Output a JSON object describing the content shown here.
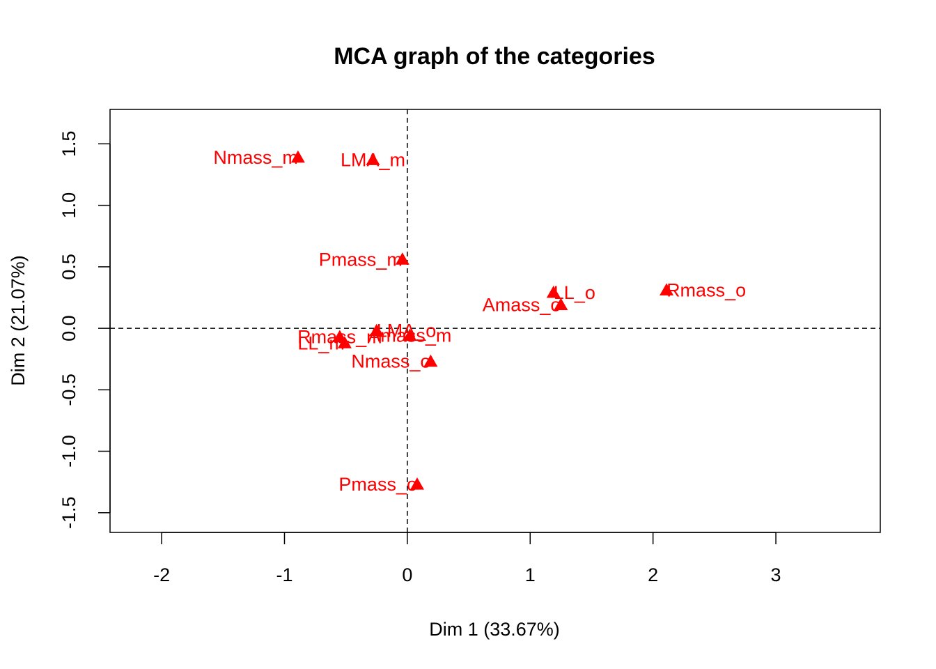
{
  "chart_data": {
    "type": "scatter",
    "title": "MCA graph of the categories",
    "xlabel": "Dim 1 (33.67%)",
    "ylabel": "Dim 2 (21.07%)",
    "xlim": [
      -2.42,
      3.85
    ],
    "ylim": [
      -1.66,
      1.78
    ],
    "xticks": [
      -2,
      -1,
      0,
      1,
      2,
      3
    ],
    "yticks": [
      -1.5,
      -1.0,
      -0.5,
      0.0,
      0.5,
      1.0,
      1.5
    ],
    "xtick_labels": [
      "-2",
      "-1",
      "0",
      "1",
      "2",
      "3"
    ],
    "ytick_labels": [
      "-1.5",
      "-1.0",
      "-0.5",
      "0.0",
      "0.5",
      "1.0",
      "1.5"
    ],
    "reference_lines": {
      "x": 0,
      "y": 0,
      "style": "dashed"
    },
    "marker": "triangle",
    "color": "#ff0000",
    "points": [
      {
        "label": "Nmass_m",
        "x": -0.89,
        "y": 1.39,
        "anchor": "end"
      },
      {
        "label": "LMA_m",
        "x": -0.28,
        "y": 1.37,
        "anchor": "middle"
      },
      {
        "label": "Pmass_m",
        "x": -0.04,
        "y": 0.56,
        "anchor": "end"
      },
      {
        "label": "LL_o",
        "x": 1.19,
        "y": 0.29,
        "anchor": "start"
      },
      {
        "label": "Rmass_o",
        "x": 2.11,
        "y": 0.31,
        "anchor": "start"
      },
      {
        "label": "Amass_o",
        "x": 1.25,
        "y": 0.19,
        "anchor": "end"
      },
      {
        "label": "Rmass_m",
        "x": -0.55,
        "y": -0.07,
        "anchor": "middle"
      },
      {
        "label": "LMA_o",
        "x": -0.25,
        "y": -0.02,
        "anchor": "start"
      },
      {
        "label": "LL_m",
        "x": -0.51,
        "y": -0.12,
        "anchor": "end"
      },
      {
        "label": "Amass_m",
        "x": 0.02,
        "y": -0.06,
        "anchor": "middle"
      },
      {
        "label": "Nmass_o",
        "x": 0.19,
        "y": -0.27,
        "anchor": "end"
      },
      {
        "label": "Pmass_o",
        "x": 0.08,
        "y": -1.27,
        "anchor": "end"
      }
    ]
  }
}
